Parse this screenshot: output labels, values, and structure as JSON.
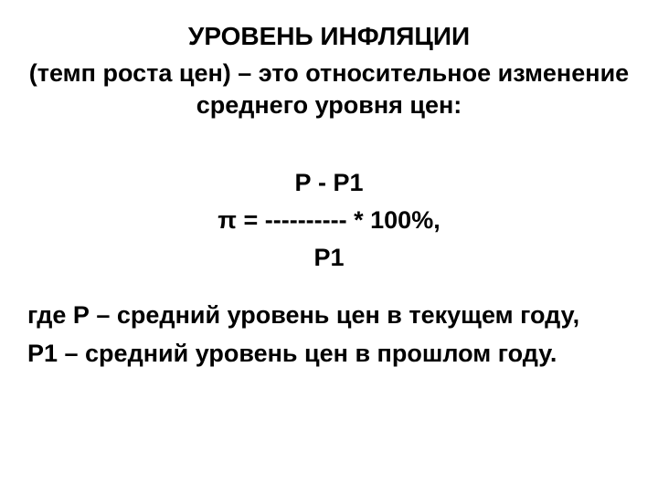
{
  "colors": {
    "background": "#ffffff",
    "text": "#000000"
  },
  "typography": {
    "family": "Arial",
    "title_fontsize_pt": 21,
    "body_fontsize_pt": 20,
    "weight": 700
  },
  "title": "УРОВЕНЬ ИНФЛЯЦИИ",
  "definition": "(темп роста цен) – это относительное изменение среднего уровня цен:",
  "formula": {
    "numerator": "Р - Р1",
    "main_line": "π =   ---------- * 100%,",
    "denominator": "Р1"
  },
  "where": {
    "p_line": "где Р – средний уровень цен в текущем году,",
    "p1_line": "Р1 – средний уровень цен в прошлом году."
  }
}
